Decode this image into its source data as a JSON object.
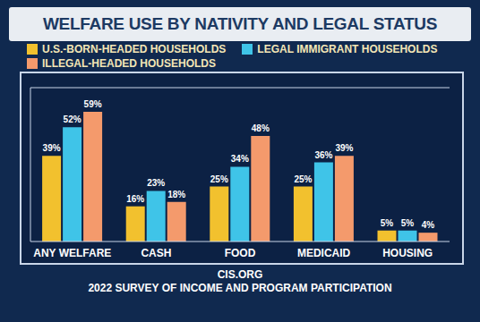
{
  "chart_data": {
    "type": "bar",
    "title": "WELFARE USE BY NATIVITY AND LEGAL STATUS",
    "source": "CIS.ORG",
    "note": "2022 SURVEY OF INCOME AND PROGRAM PARTICIPATION",
    "categories": [
      "ANY WELFARE",
      "CASH",
      "FOOD",
      "MEDICAID",
      "HOUSING"
    ],
    "series": [
      {
        "name": "U.S.-BORN-HEADED HOUSEHOLDS",
        "color": "#f2c12e",
        "values": [
          39,
          16,
          25,
          25,
          5
        ],
        "value_labels": [
          "39%",
          "16%",
          "25%",
          "25%",
          "5%"
        ]
      },
      {
        "name": "LEGAL IMMIGRANT HOUSEHOLDS",
        "color": "#3fc4e8",
        "values": [
          52,
          23,
          34,
          36,
          5
        ],
        "value_labels": [
          "52%",
          "23%",
          "34%",
          "36%",
          "5%"
        ]
      },
      {
        "name": "ILLEGAL-HEADED HOUSEHOLDS",
        "color": "#f49a6c",
        "values": [
          59,
          18,
          48,
          39,
          4
        ],
        "value_labels": [
          "59%",
          "18%",
          "48%",
          "39%",
          "4%"
        ]
      }
    ],
    "ylim": [
      0,
      70
    ],
    "yticks": [],
    "grid": false,
    "legend": "top",
    "data_labels": true,
    "tick_labels": "x"
  }
}
